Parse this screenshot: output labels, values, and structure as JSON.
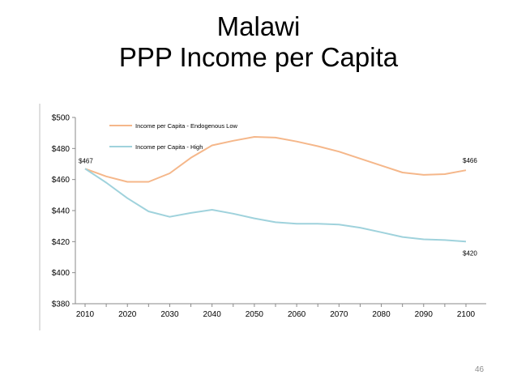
{
  "slide": {
    "title_line1": "Malawi",
    "title_line2": "PPP Income per Capita",
    "page_number": "46"
  },
  "chart_data": {
    "type": "line",
    "title": "",
    "xlabel": "",
    "ylabel": "",
    "xlim": [
      2010,
      2100
    ],
    "ylim": [
      380,
      500
    ],
    "x_ticks": [
      2010,
      2020,
      2030,
      2040,
      2050,
      2060,
      2070,
      2080,
      2090,
      2100
    ],
    "y_ticks": [
      380,
      400,
      420,
      440,
      460,
      480,
      500
    ],
    "y_tick_labels": [
      "$380",
      "$400",
      "$420",
      "$440",
      "$460",
      "$480",
      "$500"
    ],
    "grid": false,
    "legend_position": "top-left",
    "x": [
      2010,
      2015,
      2020,
      2025,
      2030,
      2035,
      2040,
      2045,
      2050,
      2055,
      2060,
      2065,
      2070,
      2075,
      2080,
      2085,
      2090,
      2095,
      2100
    ],
    "series": [
      {
        "name": "Income per Capita - Endogenous Low",
        "color": "#f5b78a",
        "values": [
          467,
          462,
          458.5,
          458.5,
          464,
          474,
          482,
          485,
          487.5,
          487,
          484.5,
          481.5,
          478,
          473.5,
          469,
          464.5,
          463,
          463.5,
          466
        ]
      },
      {
        "name": "Income per Capita - High",
        "color": "#9fd2dc",
        "values": [
          467,
          458,
          448,
          439.5,
          436,
          438.5,
          440.5,
          438,
          435,
          432.5,
          431.5,
          431.5,
          431,
          429,
          426,
          423,
          421.5,
          421,
          420
        ]
      }
    ],
    "annotations": [
      {
        "text": "$467",
        "x": 2010,
        "y": 467,
        "series": 0
      },
      {
        "text": "$466",
        "x": 2100,
        "y": 466,
        "series": 0
      },
      {
        "text": "$420",
        "x": 2100,
        "y": 420,
        "series": 1
      }
    ]
  }
}
